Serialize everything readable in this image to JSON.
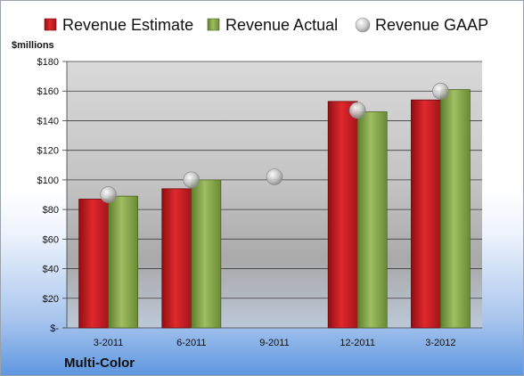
{
  "chart_data": {
    "type": "bar",
    "unit_label": "$millions",
    "footer_label": "Multi-Color",
    "categories": [
      "3-2011",
      "6-2011",
      "9-2011",
      "12-2011",
      "3-2012"
    ],
    "ylim": [
      0,
      180
    ],
    "y_ticks": [
      {
        "value": 0,
        "label": "$-"
      },
      {
        "value": 20,
        "label": "$20"
      },
      {
        "value": 40,
        "label": "$40"
      },
      {
        "value": 60,
        "label": "$60"
      },
      {
        "value": 80,
        "label": "$80"
      },
      {
        "value": 100,
        "label": "$100"
      },
      {
        "value": 120,
        "label": "$120"
      },
      {
        "value": 140,
        "label": "$140"
      },
      {
        "value": 160,
        "label": "$160"
      },
      {
        "value": 180,
        "label": "$180"
      }
    ],
    "grid": true,
    "legend_position": "top",
    "series": [
      {
        "name": "Revenue Estimate",
        "kind": "bar",
        "color": "#cc1f24",
        "values": [
          87,
          94,
          null,
          153,
          154
        ]
      },
      {
        "name": "Revenue Actual",
        "kind": "bar",
        "color": "#86a94a",
        "values": [
          89,
          100,
          null,
          146,
          161
        ]
      },
      {
        "name": "Revenue GAAP",
        "kind": "marker",
        "color": "#b8b8b8",
        "values": [
          90,
          100,
          102,
          147,
          160
        ]
      }
    ]
  }
}
